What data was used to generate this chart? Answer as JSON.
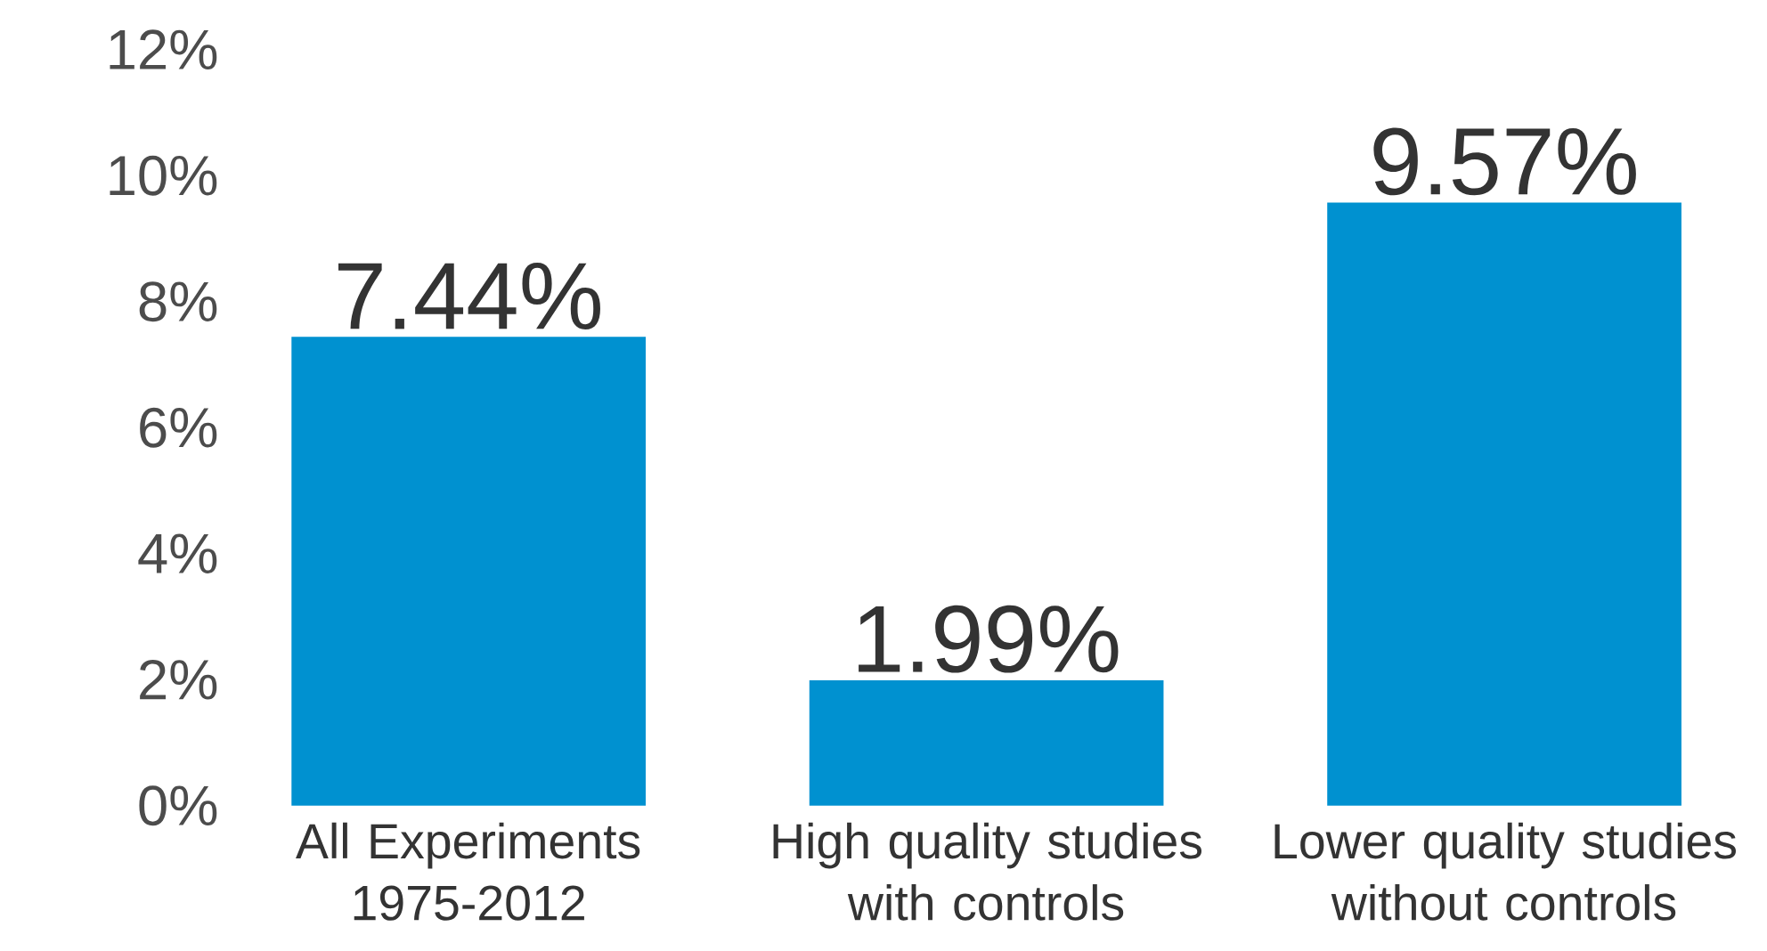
{
  "chart_data": {
    "type": "bar",
    "categories": [
      "All Experiments 1975-2012",
      "High quality studies with controls",
      "Lower quality studies without controls"
    ],
    "values": [
      7.44,
      1.99,
      9.57
    ],
    "value_labels": [
      "7.44%",
      "1.99%",
      "9.57%"
    ],
    "color": "#0091d0",
    "ylim": [
      0,
      12
    ],
    "yticks": [
      {
        "value": 0,
        "label": "0%"
      },
      {
        "value": 2,
        "label": "2%"
      },
      {
        "value": 4,
        "label": "4%"
      },
      {
        "value": 6,
        "label": "6%"
      },
      {
        "value": 8,
        "label": "8%"
      },
      {
        "value": 10,
        "label": "10%"
      },
      {
        "value": 12,
        "label": "12%"
      }
    ],
    "grid": false
  }
}
